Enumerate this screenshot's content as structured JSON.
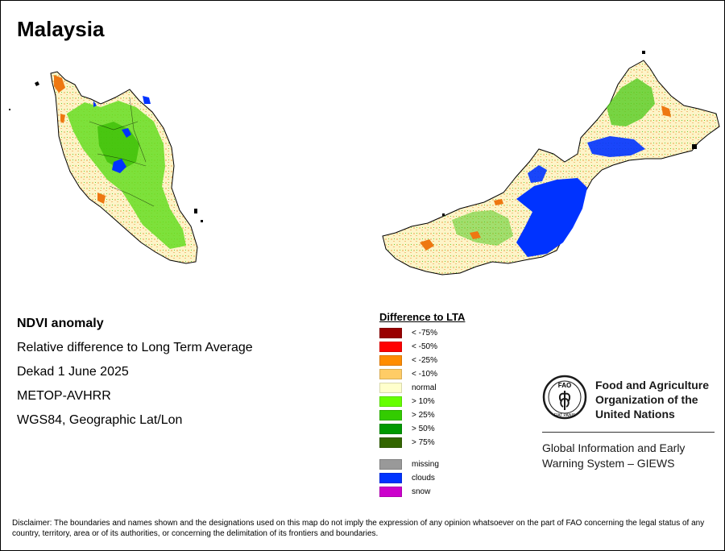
{
  "title": "Malaysia",
  "info": {
    "product": "NDVI anomaly",
    "description": "Relative difference to Long Term Average",
    "period": "Dekad 1 June 2025",
    "sensor": "METOP-AVHRR",
    "projection": "WGS84, Geographic Lat/Lon"
  },
  "legend": {
    "title": "Difference to LTA",
    "classes": [
      {
        "label": "< -75%",
        "color": "#990000"
      },
      {
        "label": "< -50%",
        "color": "#ff0000"
      },
      {
        "label": "< -25%",
        "color": "#ff8c00"
      },
      {
        "label": "< -10%",
        "color": "#ffcc66"
      },
      {
        "label": "normal",
        "color": "#ffffcc"
      },
      {
        "label": "> 10%",
        "color": "#66ff00"
      },
      {
        "label": "> 25%",
        "color": "#33cc00"
      },
      {
        "label": "> 50%",
        "color": "#009900"
      },
      {
        "label": "> 75%",
        "color": "#336600"
      }
    ],
    "extra": [
      {
        "label": "missing",
        "color": "#999999"
      },
      {
        "label": "clouds",
        "color": "#0033ff"
      },
      {
        "label": "snow",
        "color": "#cc00cc"
      }
    ]
  },
  "organization": {
    "name_lines": [
      "Food and Agriculture",
      "Organization of the",
      "United Nations"
    ],
    "logo_letters": "FAO",
    "logo_motto": "FIAT PANIS",
    "system_lines": [
      "Global Information and Early",
      "Warning System – GIEWS"
    ]
  },
  "disclaimer": "Disclaimer: The boundaries and names shown and the designations used on this map do not imply the expression of any opinion whatsoever on the part of FAO concerning the legal status of any country, territory, area or of its authorities, or concerning the delimitation of its frontiers and boundaries."
}
